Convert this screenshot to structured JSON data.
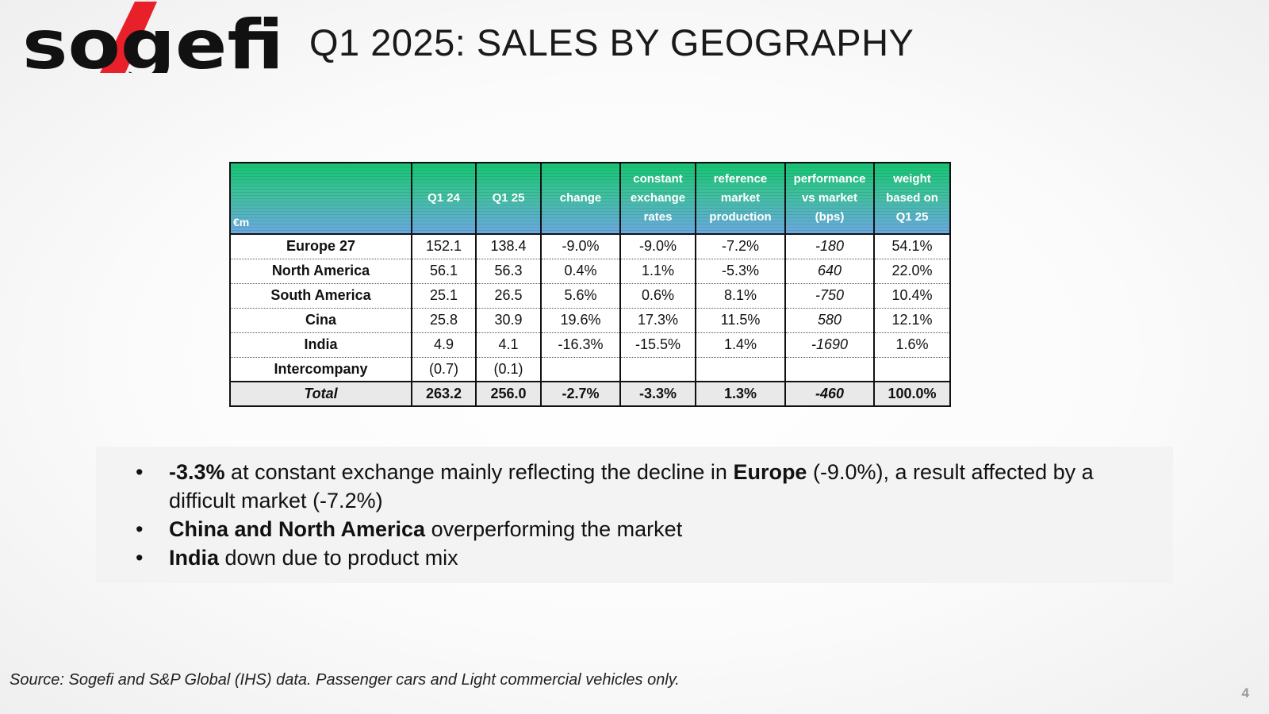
{
  "header": {
    "logo_text": "sogefi",
    "title": "Q1 2025: SALES BY GEOGRAPHY"
  },
  "colors": {
    "header_top": "#16c474",
    "header_bottom": "#6aa8e0",
    "logo_red": "#e8202a",
    "logo_black": "#111111",
    "total_row_bg": "#e9e9e9"
  },
  "table": {
    "unit": "€m",
    "columns": [
      "Q1 24",
      "Q1 25",
      "change",
      "constant exchange rates",
      "reference market production",
      "performance vs market (bps)",
      "weight based on Q1 25"
    ],
    "rows": [
      {
        "region": "Europe 27",
        "q1_24": "152.1",
        "q1_25": "138.4",
        "change": "-9.0%",
        "cer": "-9.0%",
        "market": "-7.2%",
        "perf": "-180",
        "weight": "54.1%"
      },
      {
        "region": "North America",
        "q1_24": "56.1",
        "q1_25": "56.3",
        "change": "0.4%",
        "cer": "1.1%",
        "market": "-5.3%",
        "perf": "640",
        "weight": "22.0%"
      },
      {
        "region": "South America",
        "q1_24": "25.1",
        "q1_25": "26.5",
        "change": "5.6%",
        "cer": "0.6%",
        "market": "8.1%",
        "perf": "-750",
        "weight": "10.4%"
      },
      {
        "region": "Cina",
        "q1_24": "25.8",
        "q1_25": "30.9",
        "change": "19.6%",
        "cer": "17.3%",
        "market": "11.5%",
        "perf": "580",
        "weight": "12.1%"
      },
      {
        "region": "India",
        "q1_24": "4.9",
        "q1_25": "4.1",
        "change": "-16.3%",
        "cer": "-15.5%",
        "market": "1.4%",
        "perf": "-1690",
        "weight": "1.6%"
      },
      {
        "region": "Intercompany",
        "q1_24": "(0.7)",
        "q1_25": "(0.1)",
        "change": "",
        "cer": "",
        "market": "",
        "perf": "",
        "weight": ""
      }
    ],
    "total": {
      "region": "Total",
      "q1_24": "263.2",
      "q1_25": "256.0",
      "change": "-2.7%",
      "cer": "-3.3%",
      "market": "1.3%",
      "perf": "-460",
      "weight": "100.0%"
    }
  },
  "bullets": [
    {
      "segments": [
        {
          "text": "-3.3%",
          "bold": true
        },
        {
          "text": " at constant exchange mainly reflecting the decline in ",
          "bold": false
        },
        {
          "text": "Europe",
          "bold": true
        },
        {
          "text": " (-9.0%), a result  affected by a difficult market (-7.2%)",
          "bold": false
        }
      ]
    },
    {
      "segments": [
        {
          "text": "China and North America",
          "bold": true
        },
        {
          "text": " overperforming the market",
          "bold": false
        }
      ]
    },
    {
      "segments": [
        {
          "text": "India",
          "bold": true
        },
        {
          "text": " down due to product mix",
          "bold": false
        }
      ]
    }
  ],
  "footer": {
    "source": "Source: Sogefi and S&P Global (IHS) data. Passenger cars and Light commercial vehicles only.",
    "page_number": "4"
  }
}
